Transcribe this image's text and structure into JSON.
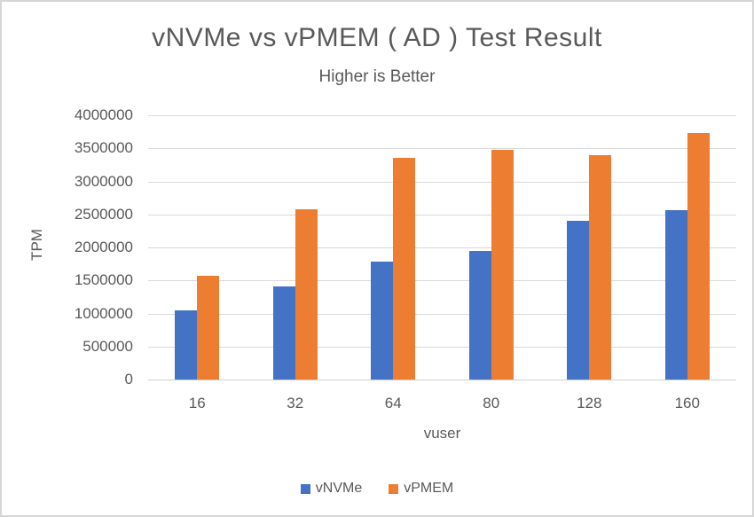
{
  "frame": {
    "background_color": "#ffffff",
    "border_color": "#d6d6d6"
  },
  "chart_data": {
    "type": "bar",
    "title": "vNVMe vs vPMEM ( AD ) Test Result",
    "subtitle": "Higher is Better",
    "xlabel": "vuser",
    "ylabel": "TPM",
    "categories": [
      "16",
      "32",
      "64",
      "80",
      "128",
      "160"
    ],
    "series": [
      {
        "name": "vNVMe",
        "color": "#4472C4",
        "values": [
          1050000,
          1410000,
          1780000,
          1940000,
          2400000,
          2570000
        ]
      },
      {
        "name": "vPMEM",
        "color": "#ED7D31",
        "values": [
          1570000,
          2580000,
          3350000,
          3480000,
          3390000,
          3730000
        ]
      }
    ],
    "ylim": [
      0,
      4000000
    ],
    "y_ticks": [
      0,
      500000,
      1000000,
      1500000,
      2000000,
      2500000,
      3000000,
      3500000,
      4000000
    ],
    "grid": "horizontal",
    "legend_position": "bottom",
    "text_color": "#595959",
    "grid_color": "#d9d9d9"
  }
}
